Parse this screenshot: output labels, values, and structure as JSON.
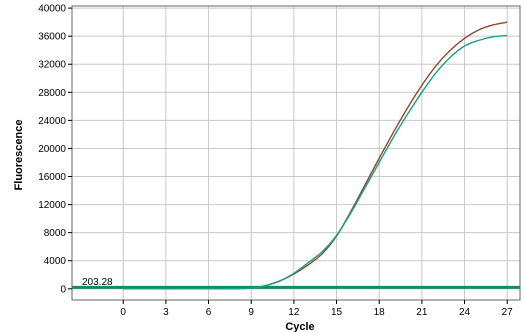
{
  "chart_data": {
    "type": "line",
    "title": "",
    "xlabel": "Cycle",
    "ylabel": "Fluorescence",
    "xlim": [
      -3.6,
      27.9
    ],
    "ylim": [
      -1600,
      40300
    ],
    "grid": true,
    "x_ticks": [
      0,
      3,
      6,
      9,
      12,
      15,
      18,
      21,
      24,
      27
    ],
    "x_tick_labels": [
      "0",
      "3",
      "6",
      "9",
      "12",
      "15",
      "18",
      "21",
      "24",
      "27"
    ],
    "y_ticks": [
      0,
      4000,
      8000,
      12000,
      16000,
      20000,
      24000,
      28000,
      32000,
      36000,
      40000
    ],
    "y_tick_labels": [
      "0",
      "4000",
      "8000",
      "12000",
      "16000",
      "20000",
      "24000",
      "28000",
      "32000",
      "36000",
      "40000"
    ],
    "threshold": {
      "value": 203.28,
      "label": "203.28",
      "color": "#1a8a5a"
    },
    "series": [
      {
        "color": "#8b4a2b",
        "x": [
          0,
          1,
          2,
          3,
          4,
          5,
          6,
          7,
          8,
          9,
          10,
          11,
          12,
          13,
          14,
          15,
          16,
          17,
          18,
          19,
          20,
          21,
          22,
          23,
          24,
          25,
          26,
          27
        ],
        "y": [
          0,
          0,
          0,
          0,
          0,
          0,
          0,
          0,
          20,
          100,
          450,
          1100,
          2100,
          3400,
          5000,
          7500,
          11000,
          14800,
          18600,
          22300,
          25800,
          29000,
          31800,
          34000,
          35700,
          36900,
          37600,
          38000
        ]
      },
      {
        "color": "#16a085",
        "x": [
          0,
          1,
          2,
          3,
          4,
          5,
          6,
          7,
          8,
          9,
          10,
          11,
          12,
          13,
          14,
          15,
          16,
          17,
          18,
          19,
          20,
          21,
          22,
          23,
          24,
          25,
          26,
          27
        ],
        "y": [
          0,
          0,
          0,
          0,
          0,
          0,
          0,
          0,
          20,
          100,
          450,
          1100,
          2200,
          3700,
          5300,
          7600,
          10800,
          14400,
          18000,
          21600,
          24900,
          28000,
          30800,
          33000,
          34600,
          35400,
          35900,
          36100
        ]
      }
    ]
  }
}
